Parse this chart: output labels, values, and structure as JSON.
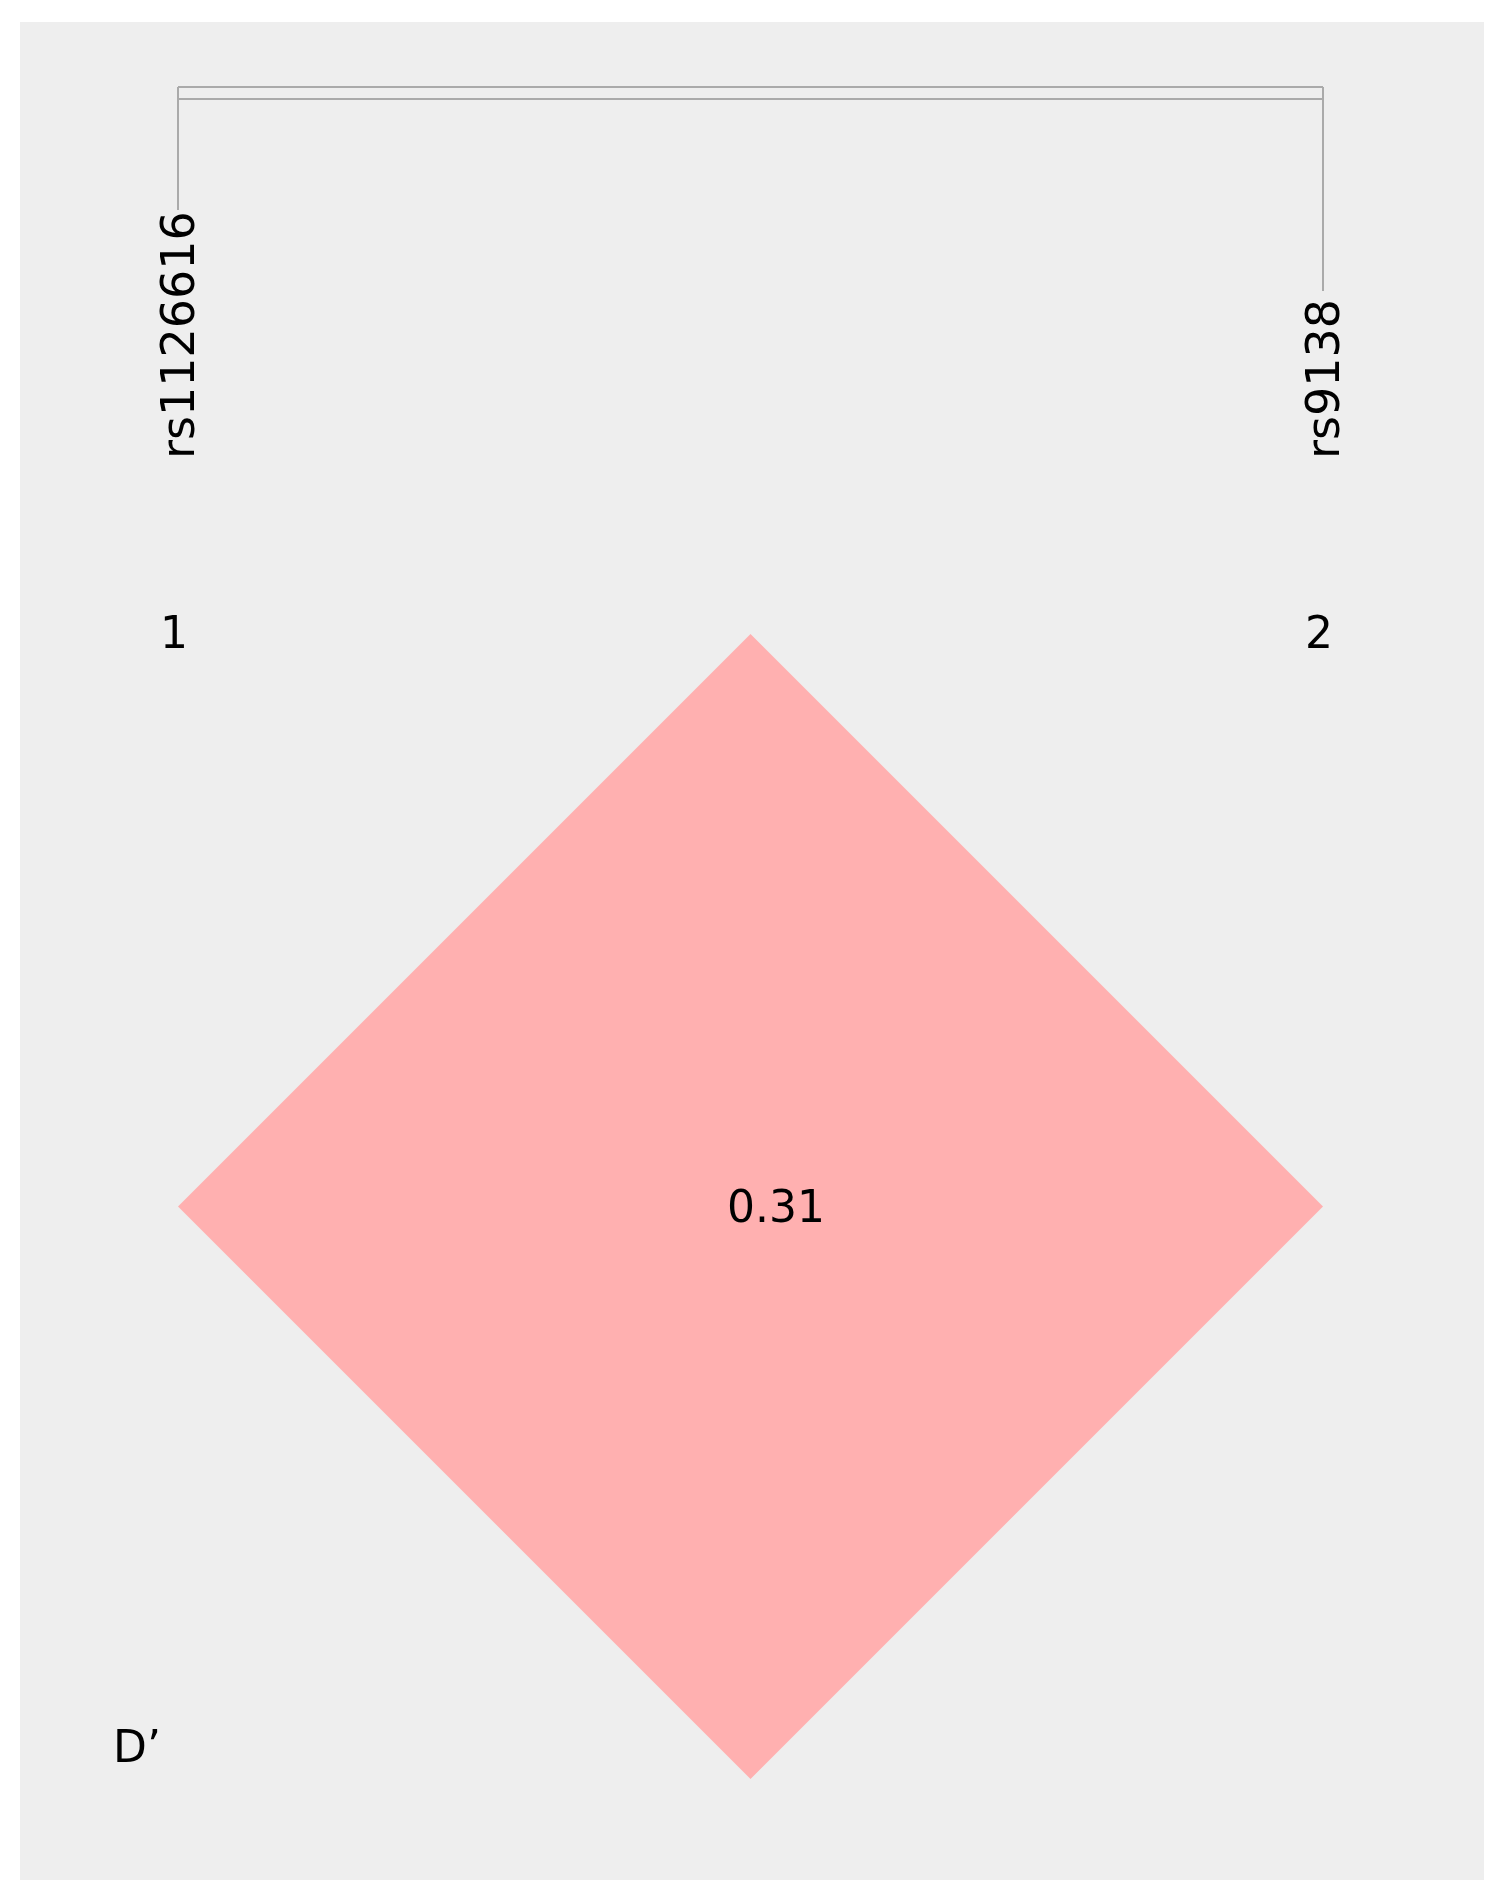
{
  "chart_data": {
    "type": "other",
    "values": [
      0.31
    ],
    "color": "#ffb0b0",
    "data_labels": true,
    "annotations": [
      "rs1126616",
      "rs9138",
      "1",
      "2",
      "D’"
    ]
  }
}
